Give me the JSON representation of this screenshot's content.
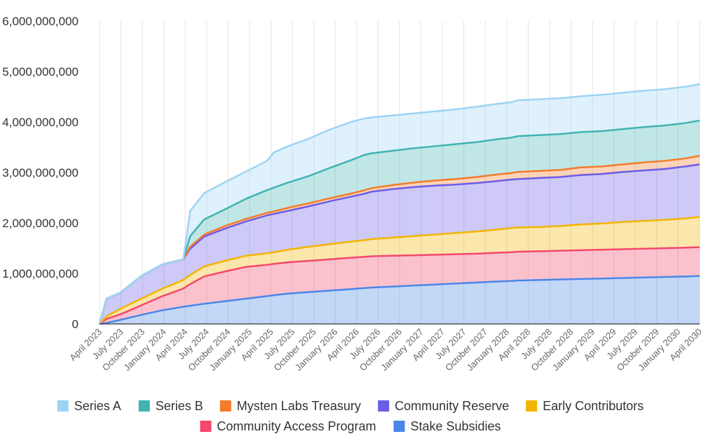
{
  "chart_data": {
    "type": "area",
    "stacked": true,
    "title": "",
    "xlabel": "",
    "ylabel": "",
    "ylim": [
      0,
      6000000000
    ],
    "yticks": [
      "0",
      "1,000,000,000",
      "2,000,000,000",
      "3,000,000,000",
      "4,000,000,000",
      "5,000,000,000",
      "6,000,000,000"
    ],
    "grid": "vertical",
    "legend_position": "bottom",
    "x_labels": [
      "April 2023",
      "July 2023",
      "October 2023",
      "January 2024",
      "April 2024",
      "July 2024",
      "October 2024",
      "January 2025",
      "April 2025",
      "July 2025",
      "October 2025",
      "January 2026",
      "April 2026",
      "July 2026",
      "October 2026",
      "January 2027",
      "April 2027",
      "July 2027",
      "October 2027",
      "January 2028",
      "April 2028",
      "July 2028",
      "October 2028",
      "January 2029",
      "April 2029",
      "July 2029",
      "October 2029",
      "January 2030",
      "April 2030"
    ],
    "x": [
      "2023-04",
      "2023-05",
      "2023-07",
      "2023-10",
      "2024-01",
      "2024-04",
      "2024-05",
      "2024-07",
      "2024-10",
      "2025-01",
      "2025-04",
      "2025-05",
      "2025-07",
      "2025-10",
      "2026-01",
      "2026-04",
      "2026-06",
      "2026-07",
      "2026-10",
      "2027-01",
      "2027-04",
      "2027-07",
      "2027-10",
      "2028-01",
      "2028-03",
      "2028-04",
      "2028-07",
      "2028-10",
      "2029-01",
      "2029-04",
      "2029-07",
      "2029-10",
      "2030-01",
      "2030-04",
      "2030-06"
    ],
    "series": [
      {
        "name": "Stake Subsidies",
        "color": "#4a86e8",
        "values": [
          0,
          20000000,
          80000000,
          180000000,
          270000000,
          340000000,
          360000000,
          400000000,
          450000000,
          500000000,
          550000000,
          570000000,
          600000000,
          630000000,
          660000000,
          690000000,
          710000000,
          720000000,
          740000000,
          760000000,
          780000000,
          800000000,
          820000000,
          840000000,
          850000000,
          860000000,
          870000000,
          880000000,
          890000000,
          900000000,
          910000000,
          920000000,
          930000000,
          940000000,
          950000000
        ]
      },
      {
        "name": "Community Access Program",
        "color": "#f4476b",
        "values": [
          0,
          80000000,
          110000000,
          190000000,
          280000000,
          360000000,
          430000000,
          540000000,
          590000000,
          630000000,
          620000000,
          620000000,
          620000000,
          620000000,
          620000000,
          620000000,
          620000000,
          620000000,
          610000000,
          600000000,
          590000000,
          580000000,
          570000000,
          570000000,
          570000000,
          570000000,
          570000000,
          570000000,
          570000000,
          570000000,
          570000000,
          570000000,
          570000000,
          570000000,
          570000000
        ]
      },
      {
        "name": "Early Contributors",
        "color": "#f4b400",
        "values": [
          0,
          50000000,
          110000000,
          130000000,
          150000000,
          170000000,
          180000000,
          200000000,
          210000000,
          220000000,
          230000000,
          230000000,
          250000000,
          280000000,
          300000000,
          320000000,
          330000000,
          340000000,
          360000000,
          380000000,
          400000000,
          420000000,
          440000000,
          460000000,
          480000000,
          480000000,
          480000000,
          490000000,
          510000000,
          520000000,
          540000000,
          550000000,
          560000000,
          580000000,
          600000000
        ]
      },
      {
        "name": "Community Reserve",
        "color": "#6b5ce7",
        "values": [
          0,
          350000000,
          320000000,
          450000000,
          480000000,
          410000000,
          520000000,
          590000000,
          640000000,
          680000000,
          750000000,
          760000000,
          770000000,
          800000000,
          850000000,
          890000000,
          920000000,
          940000000,
          960000000,
          970000000,
          970000000,
          960000000,
          960000000,
          960000000,
          960000000,
          960000000,
          970000000,
          970000000,
          980000000,
          980000000,
          990000000,
          1000000000,
          1010000000,
          1030000000,
          1040000000
        ]
      },
      {
        "name": "Mysten Labs Treasury",
        "color": "#f47b2a",
        "values": [
          0,
          0,
          0,
          0,
          0,
          0,
          40000000,
          40000000,
          50000000,
          50000000,
          50000000,
          50000000,
          60000000,
          60000000,
          60000000,
          60000000,
          70000000,
          70000000,
          80000000,
          90000000,
          100000000,
          110000000,
          120000000,
          130000000,
          130000000,
          140000000,
          140000000,
          140000000,
          150000000,
          150000000,
          150000000,
          160000000,
          160000000,
          160000000,
          170000000
        ]
      },
      {
        "name": "Series B",
        "color": "#40b3b3",
        "values": [
          0,
          0,
          0,
          0,
          0,
          0,
          210000000,
          300000000,
          330000000,
          400000000,
          450000000,
          470000000,
          500000000,
          540000000,
          600000000,
          660000000,
          700000000,
          690000000,
          680000000,
          680000000,
          680000000,
          690000000,
          690000000,
          700000000,
          700000000,
          710000000,
          710000000,
          710000000,
          700000000,
          700000000,
          700000000,
          700000000,
          700000000,
          700000000,
          700000000
        ]
      },
      {
        "name": "Series A",
        "color": "#9dd4f5",
        "values": [
          0,
          0,
          0,
          0,
          0,
          0,
          500000000,
          520000000,
          540000000,
          540000000,
          580000000,
          700000000,
          720000000,
          740000000,
          760000000,
          760000000,
          720000000,
          710000000,
          700000000,
          690000000,
          690000000,
          690000000,
          700000000,
          700000000,
          700000000,
          710000000,
          710000000,
          710000000,
          710000000,
          720000000,
          720000000,
          720000000,
          720000000,
          720000000,
          720000000
        ]
      }
    ]
  }
}
